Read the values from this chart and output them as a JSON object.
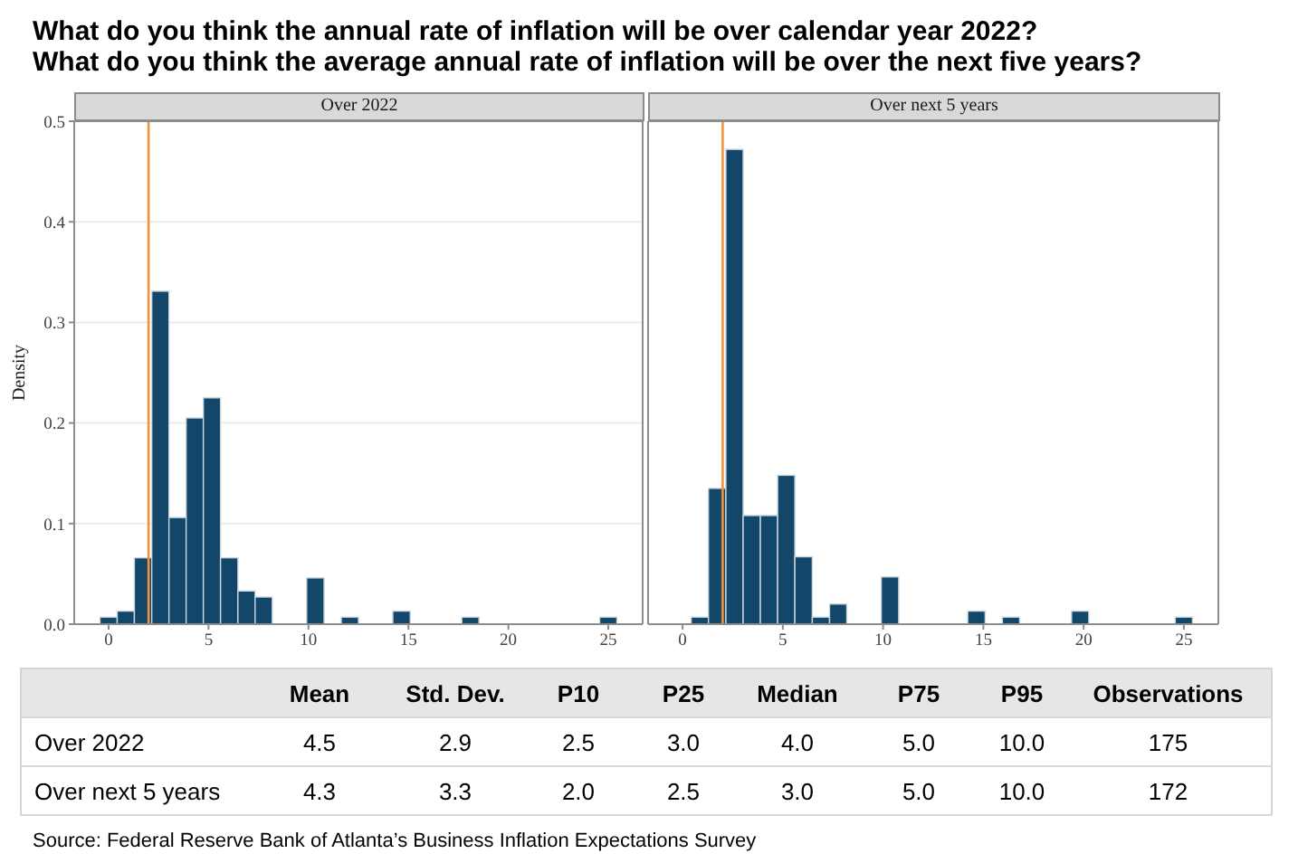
{
  "chart_data": [
    {
      "type": "histogram",
      "title": "What do you think the annual rate of inflation will be over calendar year 2022?",
      "subtitle": "Over 2022",
      "ylabel": "Density",
      "bins": [
        -0.43,
        0.43,
        1.29,
        2.16,
        3.02,
        3.88,
        4.74,
        5.6,
        6.47,
        7.33,
        8.19,
        9.05,
        9.91,
        10.78,
        11.64,
        12.5,
        13.36,
        14.22,
        15.09,
        15.95,
        16.81,
        17.67,
        18.53,
        19.4,
        20.26,
        21.12,
        21.98,
        22.84,
        23.71,
        24.57,
        25.43
      ],
      "values": [
        0.007,
        0.013,
        0.066,
        0.331,
        0.106,
        0.205,
        0.225,
        0.066,
        0.033,
        0.027,
        0,
        0,
        0.046,
        0,
        0.007,
        0,
        0,
        0.013,
        0,
        0,
        0,
        0.007,
        0,
        0,
        0,
        0,
        0,
        0,
        0,
        0.007
      ],
      "color": "#12476a",
      "xlim": [
        -1.72,
        26.72
      ],
      "xticks": [
        0,
        5,
        10,
        15,
        20,
        25
      ],
      "ylim": [
        0,
        0.5
      ],
      "yticks": [
        {
          "value": 0,
          "label": "0.0"
        },
        0.1,
        0.2,
        0.3,
        0.4,
        0.5
      ],
      "grid": "y",
      "ref_lines": [
        {
          "axis": "x",
          "value": 2,
          "color": "#f39237"
        }
      ]
    },
    {
      "type": "histogram",
      "title": "What do you think the average annual rate of inflation will be over the next five years?",
      "subtitle": "Over next 5 years",
      "bins": [
        -0.43,
        0.43,
        1.29,
        2.16,
        3.02,
        3.88,
        4.74,
        5.6,
        6.47,
        7.33,
        8.19,
        9.05,
        9.91,
        10.78,
        11.64,
        12.5,
        13.36,
        14.22,
        15.09,
        15.95,
        16.81,
        17.67,
        18.53,
        19.4,
        20.26,
        21.12,
        21.98,
        22.84,
        23.71,
        24.57,
        25.43
      ],
      "values": [
        0,
        0.007,
        0.135,
        0.472,
        0.108,
        0.108,
        0.148,
        0.067,
        0.007,
        0.02,
        0,
        0,
        0.047,
        0,
        0,
        0,
        0,
        0.013,
        0,
        0.007,
        0,
        0,
        0,
        0.013,
        0,
        0,
        0,
        0,
        0,
        0.007
      ],
      "color": "#12476a",
      "xlim": [
        -1.72,
        26.72
      ],
      "xticks": [
        0,
        5,
        10,
        15,
        20,
        25
      ],
      "ylim": [
        0,
        0.5
      ],
      "yticks": [
        0,
        0.1,
        0.2,
        0.3,
        0.4,
        0.5
      ],
      "tick_labels": "x",
      "grid": "y",
      "ref_lines": [
        {
          "axis": "x",
          "value": 2,
          "color": "#f39237"
        }
      ]
    },
    {
      "type": "other",
      "categories": [
        "Mean",
        "Std. Dev.",
        "P10",
        "P25",
        "Median",
        "P75",
        "P95",
        "Observations"
      ],
      "y_categories": [
        "Over 2022",
        "Over next 5 years"
      ],
      "cell_labels": [
        [
          "4.5",
          "2.9",
          "2.5",
          "3.0",
          "4.0",
          "5.0",
          "10.0",
          "175"
        ],
        [
          "4.3",
          "3.3",
          "2.0",
          "2.5",
          "3.0",
          "5.0",
          "10.0",
          "172"
        ]
      ],
      "annotations": [
        "Source: Federal Reserve Bank of Atlanta’s Business Inflation Expectations Survey"
      ]
    }
  ]
}
